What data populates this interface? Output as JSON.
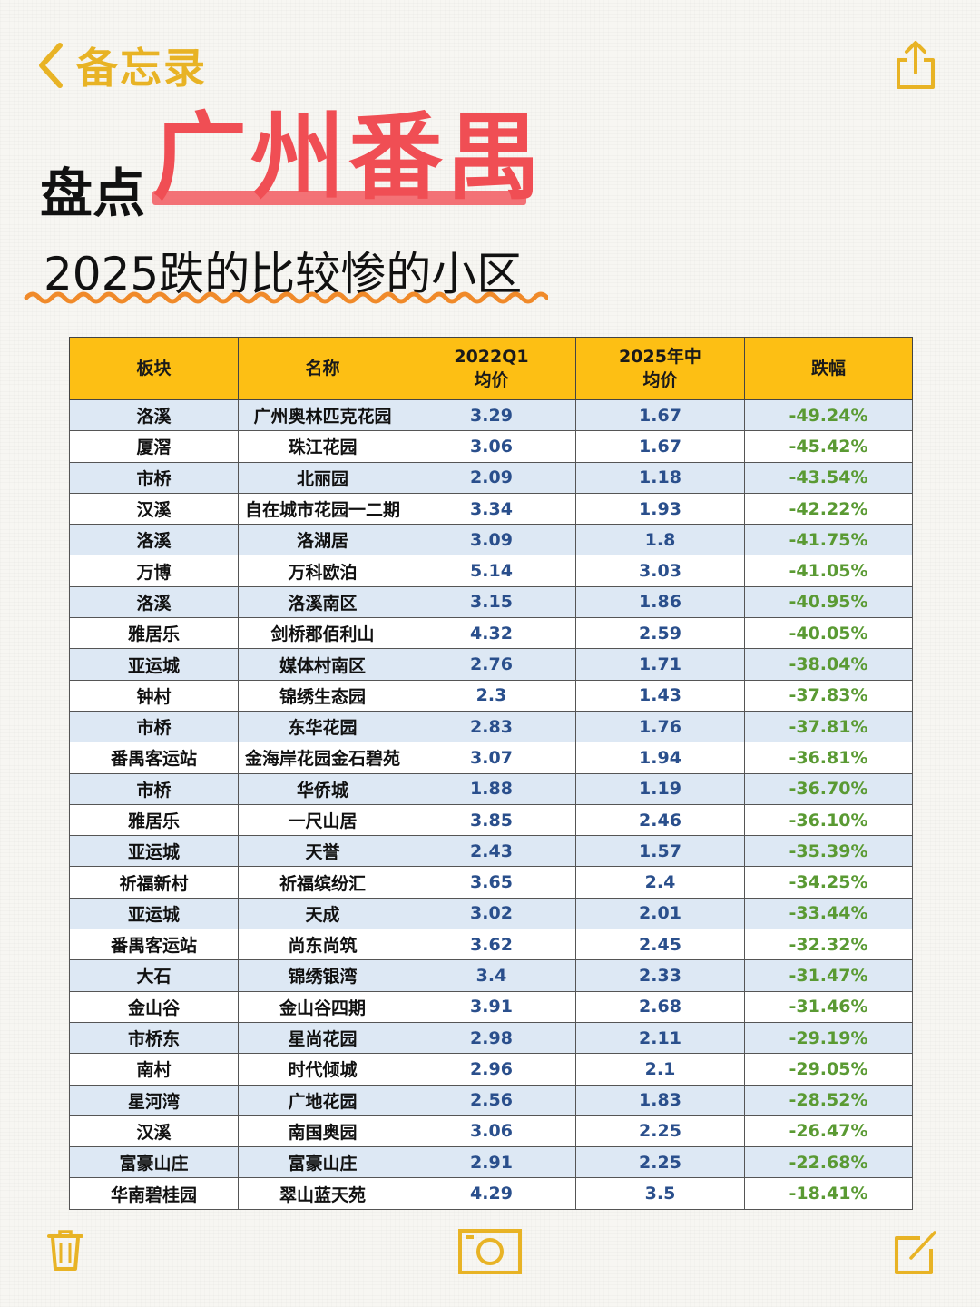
{
  "nav": {
    "back_label": "备忘录"
  },
  "headline": {
    "prefix": "盘点",
    "highlight": "广州番禺"
  },
  "subtitle": "2025跌的比较惨的小区",
  "table": {
    "headers": [
      {
        "line1": "板块",
        "line2": ""
      },
      {
        "line1": "名称",
        "line2": ""
      },
      {
        "line1": "2022Q1",
        "line2": "均价"
      },
      {
        "line1": "2025年中",
        "line2": "均价"
      },
      {
        "line1": "跌幅",
        "line2": ""
      }
    ],
    "rows": [
      [
        "洛溪",
        "广州奥林匹克花园",
        "3.29",
        "1.67",
        "-49.24%"
      ],
      [
        "厦滘",
        "珠江花园",
        "3.06",
        "1.67",
        "-45.42%"
      ],
      [
        "市桥",
        "北丽园",
        "2.09",
        "1.18",
        "-43.54%"
      ],
      [
        "汉溪",
        "自在城市花园一二期",
        "3.34",
        "1.93",
        "-42.22%"
      ],
      [
        "洛溪",
        "洛湖居",
        "3.09",
        "1.8",
        "-41.75%"
      ],
      [
        "万博",
        "万科欧泊",
        "5.14",
        "3.03",
        "-41.05%"
      ],
      [
        "洛溪",
        "洛溪南区",
        "3.15",
        "1.86",
        "-40.95%"
      ],
      [
        "雅居乐",
        "剑桥郡佰利山",
        "4.32",
        "2.59",
        "-40.05%"
      ],
      [
        "亚运城",
        "媒体村南区",
        "2.76",
        "1.71",
        "-38.04%"
      ],
      [
        "钟村",
        "锦绣生态园",
        "2.3",
        "1.43",
        "-37.83%"
      ],
      [
        "市桥",
        "东华花园",
        "2.83",
        "1.76",
        "-37.81%"
      ],
      [
        "番禺客运站",
        "金海岸花园金石碧苑",
        "3.07",
        "1.94",
        "-36.81%"
      ],
      [
        "市桥",
        "华侨城",
        "1.88",
        "1.19",
        "-36.70%"
      ],
      [
        "雅居乐",
        "一尺山居",
        "3.85",
        "2.46",
        "-36.10%"
      ],
      [
        "亚运城",
        "天誉",
        "2.43",
        "1.57",
        "-35.39%"
      ],
      [
        "祈福新村",
        "祈福缤纷汇",
        "3.65",
        "2.4",
        "-34.25%"
      ],
      [
        "亚运城",
        "天成",
        "3.02",
        "2.01",
        "-33.44%"
      ],
      [
        "番禺客运站",
        "尚东尚筑",
        "3.62",
        "2.45",
        "-32.32%"
      ],
      [
        "大石",
        "锦绣银湾",
        "3.4",
        "2.33",
        "-31.47%"
      ],
      [
        "金山谷",
        "金山谷四期",
        "3.91",
        "2.68",
        "-31.46%"
      ],
      [
        "市桥东",
        "星尚花园",
        "2.98",
        "2.11",
        "-29.19%"
      ],
      [
        "南村",
        "时代倾城",
        "2.96",
        "2.1",
        "-29.05%"
      ],
      [
        "星河湾",
        "广地花园",
        "2.56",
        "1.83",
        "-28.52%"
      ],
      [
        "汉溪",
        "南国奥园",
        "3.06",
        "2.25",
        "-26.47%"
      ],
      [
        "富豪山庄",
        "富豪山庄",
        "2.91",
        "2.25",
        "-22.68%"
      ],
      [
        "华南碧桂园",
        "翠山蓝天苑",
        "4.29",
        "3.5",
        "-18.41%"
      ]
    ]
  },
  "colors": {
    "accent_yellow": "#e8b325",
    "header_bg": "#fdbf14",
    "highlight_red": "#f04e54",
    "row_blue": "#dde8f4",
    "number_blue": "#2a4f8c",
    "percent_green": "#5a9a33"
  },
  "icons": {
    "back": "chevron-left-icon",
    "share": "share-icon",
    "trash": "trash-icon",
    "camera": "camera-icon",
    "compose": "compose-icon"
  }
}
